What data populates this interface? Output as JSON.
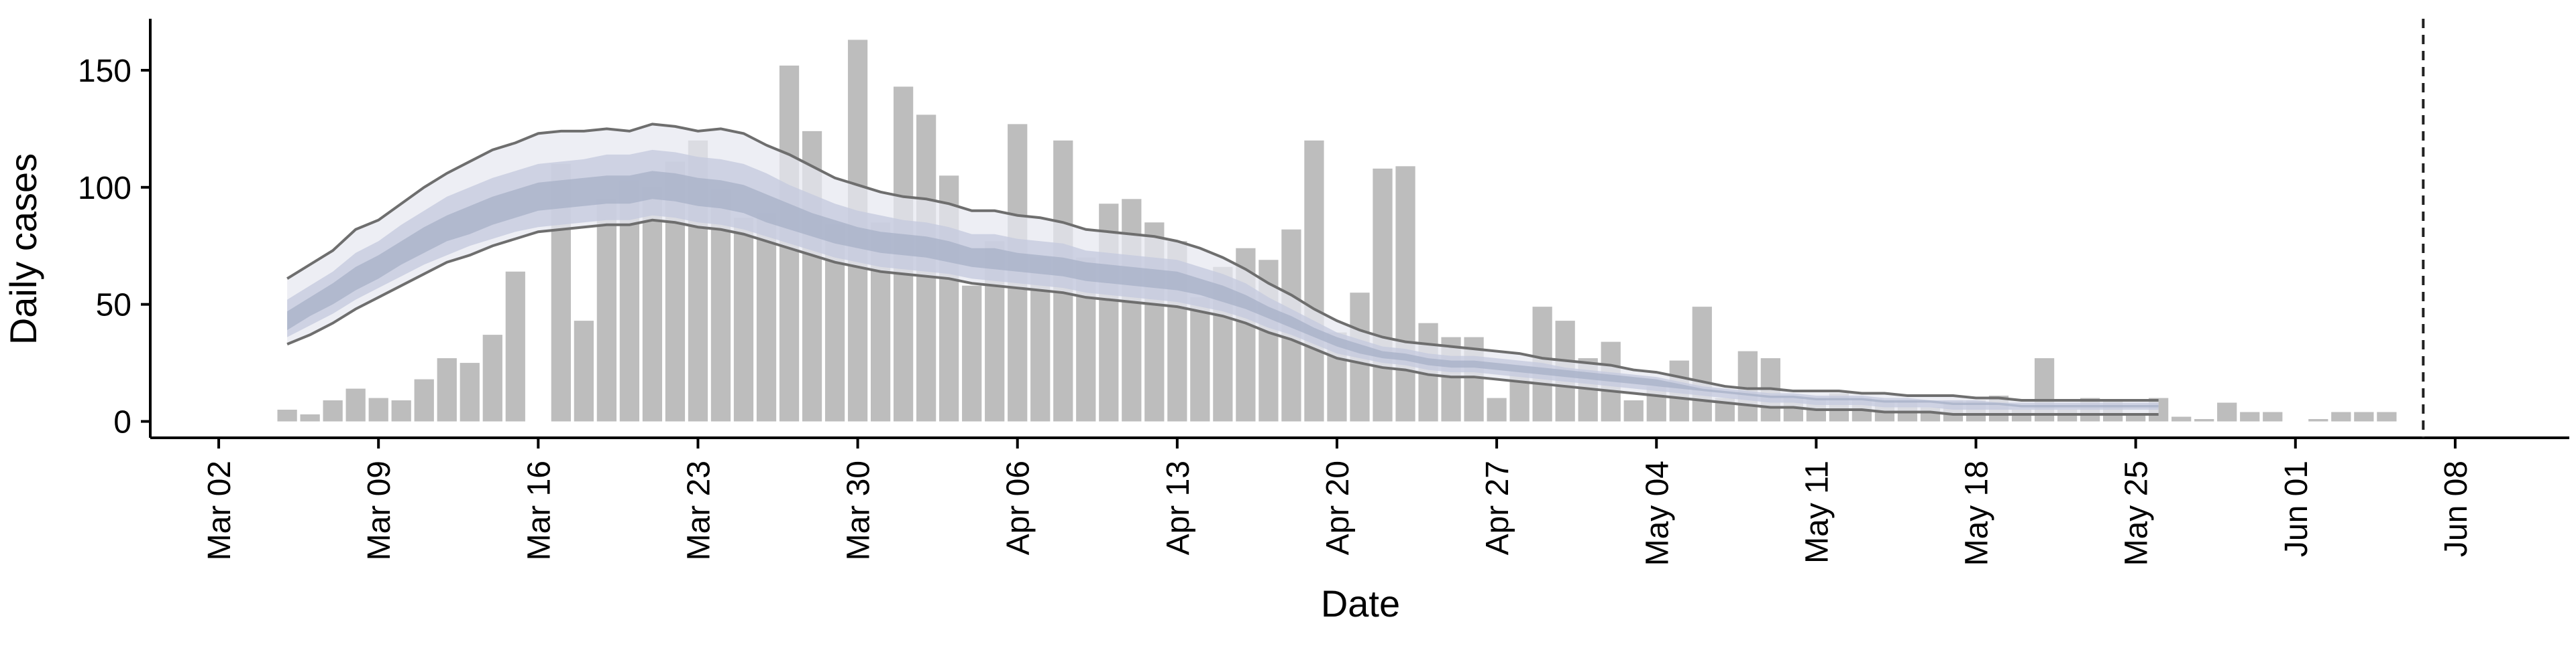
{
  "chart_data": {
    "type": "bar",
    "xlabel": "Date",
    "ylabel": "Daily cases",
    "ylim": [
      -7,
      172
    ],
    "yticks": [
      0,
      50,
      100,
      150
    ],
    "x_start": "2020-02-28",
    "xlim_days": [
      0,
      106
    ],
    "xticks": [
      "Mar 02",
      "Mar 09",
      "Mar 16",
      "Mar 23",
      "Mar 30",
      "Apr 06",
      "Apr 13",
      "Apr 20",
      "Apr 27",
      "May 04",
      "May 11",
      "May 18",
      "May 25",
      "Jun 01",
      "Jun 08"
    ],
    "grid": false,
    "legend": "none",
    "colors": {
      "bars": "#bdbdbd",
      "outer_band": "#e6e8f0",
      "inner_band": "#c5cbde",
      "median_band": "#a7b0c7",
      "band_edge": "#6e6e6e",
      "vline": "#222222"
    },
    "cases": [
      {
        "date": "Mar 05",
        "value": 5
      },
      {
        "date": "Mar 06",
        "value": 3
      },
      {
        "date": "Mar 07",
        "value": 9
      },
      {
        "date": "Mar 08",
        "value": 14
      },
      {
        "date": "Mar 09",
        "value": 10
      },
      {
        "date": "Mar 10",
        "value": 9
      },
      {
        "date": "Mar 11",
        "value": 18
      },
      {
        "date": "Mar 12",
        "value": 27
      },
      {
        "date": "Mar 13",
        "value": 25
      },
      {
        "date": "Mar 14",
        "value": 37
      },
      {
        "date": "Mar 15",
        "value": 64
      },
      {
        "date": "Mar 17",
        "value": 110
      },
      {
        "date": "Mar 18",
        "value": 43
      },
      {
        "date": "Mar 19",
        "value": 95
      },
      {
        "date": "Mar 20",
        "value": 103
      },
      {
        "date": "Mar 21",
        "value": 100
      },
      {
        "date": "Mar 22",
        "value": 111
      },
      {
        "date": "Mar 23",
        "value": 120
      },
      {
        "date": "Mar 24",
        "value": 99
      },
      {
        "date": "Mar 25",
        "value": 87
      },
      {
        "date": "Mar 26",
        "value": 89
      },
      {
        "date": "Mar 27",
        "value": 152
      },
      {
        "date": "Mar 28",
        "value": 124
      },
      {
        "date": "Mar 29",
        "value": 84
      },
      {
        "date": "Mar 30",
        "value": 163
      },
      {
        "date": "Mar 31",
        "value": 85
      },
      {
        "date": "Apr 01",
        "value": 143
      },
      {
        "date": "Apr 02",
        "value": 131
      },
      {
        "date": "Apr 03",
        "value": 105
      },
      {
        "date": "Apr 04",
        "value": 58
      },
      {
        "date": "Apr 05",
        "value": 77
      },
      {
        "date": "Apr 06",
        "value": 127
      },
      {
        "date": "Apr 07",
        "value": 70
      },
      {
        "date": "Apr 08",
        "value": 120
      },
      {
        "date": "Apr 09",
        "value": 70
      },
      {
        "date": "Apr 10",
        "value": 93
      },
      {
        "date": "Apr 11",
        "value": 95
      },
      {
        "date": "Apr 12",
        "value": 85
      },
      {
        "date": "Apr 13",
        "value": 77
      },
      {
        "date": "Apr 14",
        "value": 53
      },
      {
        "date": "Apr 15",
        "value": 66
      },
      {
        "date": "Apr 16",
        "value": 74
      },
      {
        "date": "Apr 17",
        "value": 69
      },
      {
        "date": "Apr 18",
        "value": 82
      },
      {
        "date": "Apr 19",
        "value": 120
      },
      {
        "date": "Apr 20",
        "value": 38
      },
      {
        "date": "Apr 21",
        "value": 55
      },
      {
        "date": "Apr 22",
        "value": 108
      },
      {
        "date": "Apr 23",
        "value": 109
      },
      {
        "date": "Apr 24",
        "value": 42
      },
      {
        "date": "Apr 25",
        "value": 36
      },
      {
        "date": "Apr 26",
        "value": 36
      },
      {
        "date": "Apr 27",
        "value": 10
      },
      {
        "date": "Apr 28",
        "value": 22
      },
      {
        "date": "Apr 29",
        "value": 49
      },
      {
        "date": "Apr 30",
        "value": 43
      },
      {
        "date": "May 01",
        "value": 27
      },
      {
        "date": "May 02",
        "value": 34
      },
      {
        "date": "May 03",
        "value": 9
      },
      {
        "date": "May 04",
        "value": 15
      },
      {
        "date": "May 05",
        "value": 26
      },
      {
        "date": "May 06",
        "value": 49
      },
      {
        "date": "May 07",
        "value": 10
      },
      {
        "date": "May 08",
        "value": 30
      },
      {
        "date": "May 09",
        "value": 27
      },
      {
        "date": "May 10",
        "value": 10
      },
      {
        "date": "May 11",
        "value": 10
      },
      {
        "date": "May 12",
        "value": 12
      },
      {
        "date": "May 13",
        "value": 10
      },
      {
        "date": "May 14",
        "value": 9
      },
      {
        "date": "May 15",
        "value": 9
      },
      {
        "date": "May 16",
        "value": 6
      },
      {
        "date": "May 17",
        "value": 9
      },
      {
        "date": "May 18",
        "value": 9
      },
      {
        "date": "May 19",
        "value": 11
      },
      {
        "date": "May 20",
        "value": 5
      },
      {
        "date": "May 21",
        "value": 27
      },
      {
        "date": "May 22",
        "value": 5
      },
      {
        "date": "May 23",
        "value": 10
      },
      {
        "date": "May 24",
        "value": 9
      },
      {
        "date": "May 25",
        "value": 3
      },
      {
        "date": "May 26",
        "value": 10
      },
      {
        "date": "May 27",
        "value": 2
      },
      {
        "date": "May 28",
        "value": 1
      },
      {
        "date": "May 29",
        "value": 8
      },
      {
        "date": "May 30",
        "value": 4
      },
      {
        "date": "May 31",
        "value": 4
      },
      {
        "date": "Jun 02",
        "value": 1
      },
      {
        "date": "Jun 03",
        "value": 4
      },
      {
        "date": "Jun 04",
        "value": 4
      },
      {
        "date": "Jun 05",
        "value": 4
      }
    ],
    "estimate_days": [
      6,
      7,
      8,
      9,
      10,
      11,
      12,
      13,
      14,
      15,
      16,
      17,
      18,
      19,
      20,
      21,
      22,
      23,
      24,
      25,
      26,
      27,
      28,
      29,
      30,
      31,
      32,
      33,
      34,
      35,
      36,
      37,
      38,
      39,
      40,
      41,
      42,
      43,
      44,
      45,
      46,
      47,
      48,
      49,
      50,
      51,
      52,
      53,
      54,
      55,
      56,
      57,
      58,
      59,
      60,
      61,
      62,
      63,
      64,
      65,
      66,
      67,
      68,
      69,
      70,
      71,
      72,
      73,
      74,
      75,
      76,
      77,
      78,
      79,
      80,
      81,
      82,
      83,
      84,
      85,
      86,
      87,
      88
    ],
    "estimate_bands": {
      "outer_upper": [
        61,
        67,
        73,
        82,
        86,
        93,
        100,
        106,
        111,
        116,
        119,
        123,
        124,
        124,
        125,
        124,
        127,
        126,
        124,
        125,
        123,
        118,
        114,
        109,
        104,
        101,
        98,
        96,
        95,
        93,
        90,
        90,
        88,
        87,
        85,
        82,
        81,
        80,
        79,
        77,
        74,
        70,
        65,
        59,
        54,
        48,
        43,
        39,
        36,
        34,
        33,
        32,
        31,
        30,
        29,
        27,
        26,
        25,
        24,
        22,
        21,
        19,
        17,
        15,
        14,
        14,
        13,
        13,
        13,
        12,
        12,
        11,
        11,
        11,
        10,
        10,
        9,
        9,
        9,
        9,
        9,
        9,
        9
      ],
      "inner_upper": [
        52,
        58,
        64,
        72,
        77,
        84,
        90,
        96,
        100,
        104,
        107,
        110,
        111,
        112,
        114,
        114,
        116,
        115,
        113,
        112,
        110,
        106,
        101,
        97,
        93,
        90,
        88,
        86,
        85,
        83,
        80,
        80,
        78,
        77,
        76,
        73,
        72,
        71,
        70,
        69,
        66,
        63,
        59,
        53,
        48,
        43,
        38,
        35,
        32,
        31,
        29,
        28,
        28,
        27,
        26,
        25,
        23,
        22,
        21,
        20,
        19,
        17,
        15,
        14,
        13,
        12,
        12,
        11,
        11,
        11,
        10,
        10,
        9,
        9,
        9,
        8,
        8,
        8,
        8,
        8,
        8,
        8,
        8
      ],
      "median_upper": [
        47,
        53,
        59,
        66,
        71,
        77,
        83,
        88,
        92,
        96,
        99,
        102,
        103,
        104,
        105,
        105,
        107,
        106,
        104,
        103,
        101,
        97,
        93,
        89,
        86,
        83,
        81,
        80,
        79,
        77,
        74,
        74,
        72,
        71,
        70,
        68,
        67,
        66,
        65,
        64,
        61,
        58,
        54,
        49,
        45,
        40,
        36,
        33,
        30,
        29,
        27,
        26,
        26,
        25,
        24,
        23,
        22,
        21,
        20,
        19,
        18,
        16,
        14,
        13,
        12,
        11,
        11,
        10,
        10,
        10,
        9,
        9,
        9,
        8,
        8,
        8,
        7,
        7,
        7,
        7,
        7,
        7,
        7
      ],
      "median_lower": [
        39,
        45,
        50,
        56,
        61,
        67,
        72,
        77,
        80,
        84,
        87,
        90,
        91,
        92,
        93,
        93,
        95,
        94,
        92,
        91,
        89,
        85,
        82,
        79,
        76,
        74,
        72,
        71,
        70,
        68,
        66,
        65,
        64,
        63,
        62,
        60,
        59,
        58,
        57,
        56,
        54,
        51,
        48,
        44,
        40,
        36,
        32,
        29,
        27,
        26,
        24,
        23,
        23,
        22,
        21,
        20,
        19,
        18,
        17,
        16,
        15,
        14,
        13,
        12,
        11,
        10,
        10,
        9,
        9,
        9,
        8,
        8,
        8,
        7,
        7,
        7,
        6,
        6,
        6,
        6,
        6,
        6,
        6
      ],
      "inner_lower": [
        36,
        41,
        46,
        52,
        57,
        62,
        67,
        71,
        75,
        78,
        81,
        83,
        84,
        85,
        86,
        86,
        88,
        87,
        85,
        84,
        82,
        79,
        76,
        73,
        70,
        68,
        66,
        65,
        64,
        63,
        61,
        60,
        59,
        58,
        57,
        55,
        54,
        53,
        52,
        51,
        49,
        47,
        44,
        40,
        37,
        33,
        29,
        27,
        25,
        24,
        22,
        21,
        21,
        20,
        19,
        18,
        17,
        16,
        15,
        14,
        13,
        12,
        11,
        10,
        9,
        8,
        8,
        7,
        7,
        7,
        6,
        6,
        6,
        5,
        5,
        5,
        5,
        5,
        5,
        5,
        5,
        5,
        5
      ],
      "outer_lower": [
        33,
        37,
        42,
        48,
        53,
        58,
        63,
        68,
        71,
        75,
        78,
        81,
        82,
        83,
        84,
        84,
        86,
        85,
        83,
        82,
        80,
        77,
        74,
        71,
        68,
        66,
        64,
        63,
        62,
        61,
        59,
        58,
        57,
        56,
        55,
        53,
        52,
        51,
        50,
        49,
        47,
        45,
        42,
        38,
        35,
        31,
        27,
        25,
        23,
        22,
        20,
        19,
        19,
        18,
        17,
        16,
        15,
        14,
        13,
        12,
        11,
        10,
        9,
        8,
        7,
        6,
        6,
        5,
        5,
        5,
        4,
        4,
        4,
        3,
        3,
        3,
        3,
        3,
        3,
        3,
        3,
        3,
        3
      ]
    },
    "vline_date": "Jun 06"
  }
}
